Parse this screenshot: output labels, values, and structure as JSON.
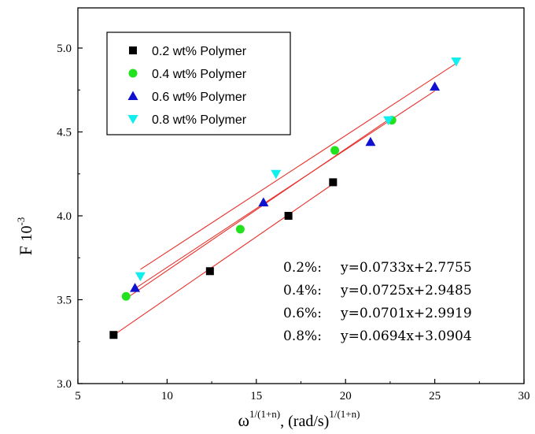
{
  "chart_data": {
    "type": "scatter",
    "xlabel": {
      "base": "ω",
      "sup": "1/(1+n)",
      "mid": ", (rad/s)",
      "sup2": "1/(1+n)"
    },
    "ylabel": {
      "main": "F",
      "unit": "10",
      "unit_sup": "-3"
    },
    "xlim": [
      5,
      30
    ],
    "ylim": [
      3.0,
      5.1
    ],
    "xticks": [
      5,
      10,
      15,
      20,
      25,
      30
    ],
    "yticks": [
      3.0,
      3.5,
      4.0,
      4.5,
      5.0
    ],
    "grid": false,
    "legend_position": "top-left",
    "series": [
      {
        "name": "0.2 wt% Polymer",
        "marker": "square",
        "color": "#000000",
        "x": [
          7.0,
          12.4,
          16.8,
          19.3
        ],
        "y": [
          3.29,
          3.67,
          4.0,
          4.2
        ],
        "fit": {
          "slope": 0.0733,
          "intercept": 2.7755
        }
      },
      {
        "name": "0.4 wt% Polymer",
        "marker": "circle",
        "color": "#22e11e",
        "x": [
          7.7,
          14.1,
          19.4,
          22.6
        ],
        "y": [
          3.52,
          3.92,
          4.39,
          4.57
        ],
        "fit": {
          "slope": 0.0725,
          "intercept": 2.9485
        }
      },
      {
        "name": "0.6 wt% Polymer",
        "marker": "triangle-up",
        "color": "#1010d0",
        "x": [
          8.2,
          15.4,
          21.4,
          25.0
        ],
        "y": [
          3.57,
          4.08,
          4.44,
          4.77
        ],
        "fit": {
          "slope": 0.0701,
          "intercept": 2.9919
        }
      },
      {
        "name": "0.8 wt% Polymer",
        "marker": "triangle-down",
        "color": "#11eeee",
        "x": [
          8.5,
          16.1,
          22.4,
          26.2
        ],
        "y": [
          3.64,
          4.25,
          4.57,
          4.92
        ],
        "fit": {
          "slope": 0.0694,
          "intercept": 3.0904
        }
      }
    ],
    "fit_line_color": "#e8312c",
    "annotations": [
      {
        "label": "0.2%:",
        "equation": "y=0.0733x+2.7755"
      },
      {
        "label": "0.4%:",
        "equation": "y=0.0725x+2.9485"
      },
      {
        "label": "0.6%:",
        "equation": "y=0.0701x+2.9919"
      },
      {
        "label": "0.8%:",
        "equation": "y=0.0694x+3.0904"
      }
    ]
  }
}
